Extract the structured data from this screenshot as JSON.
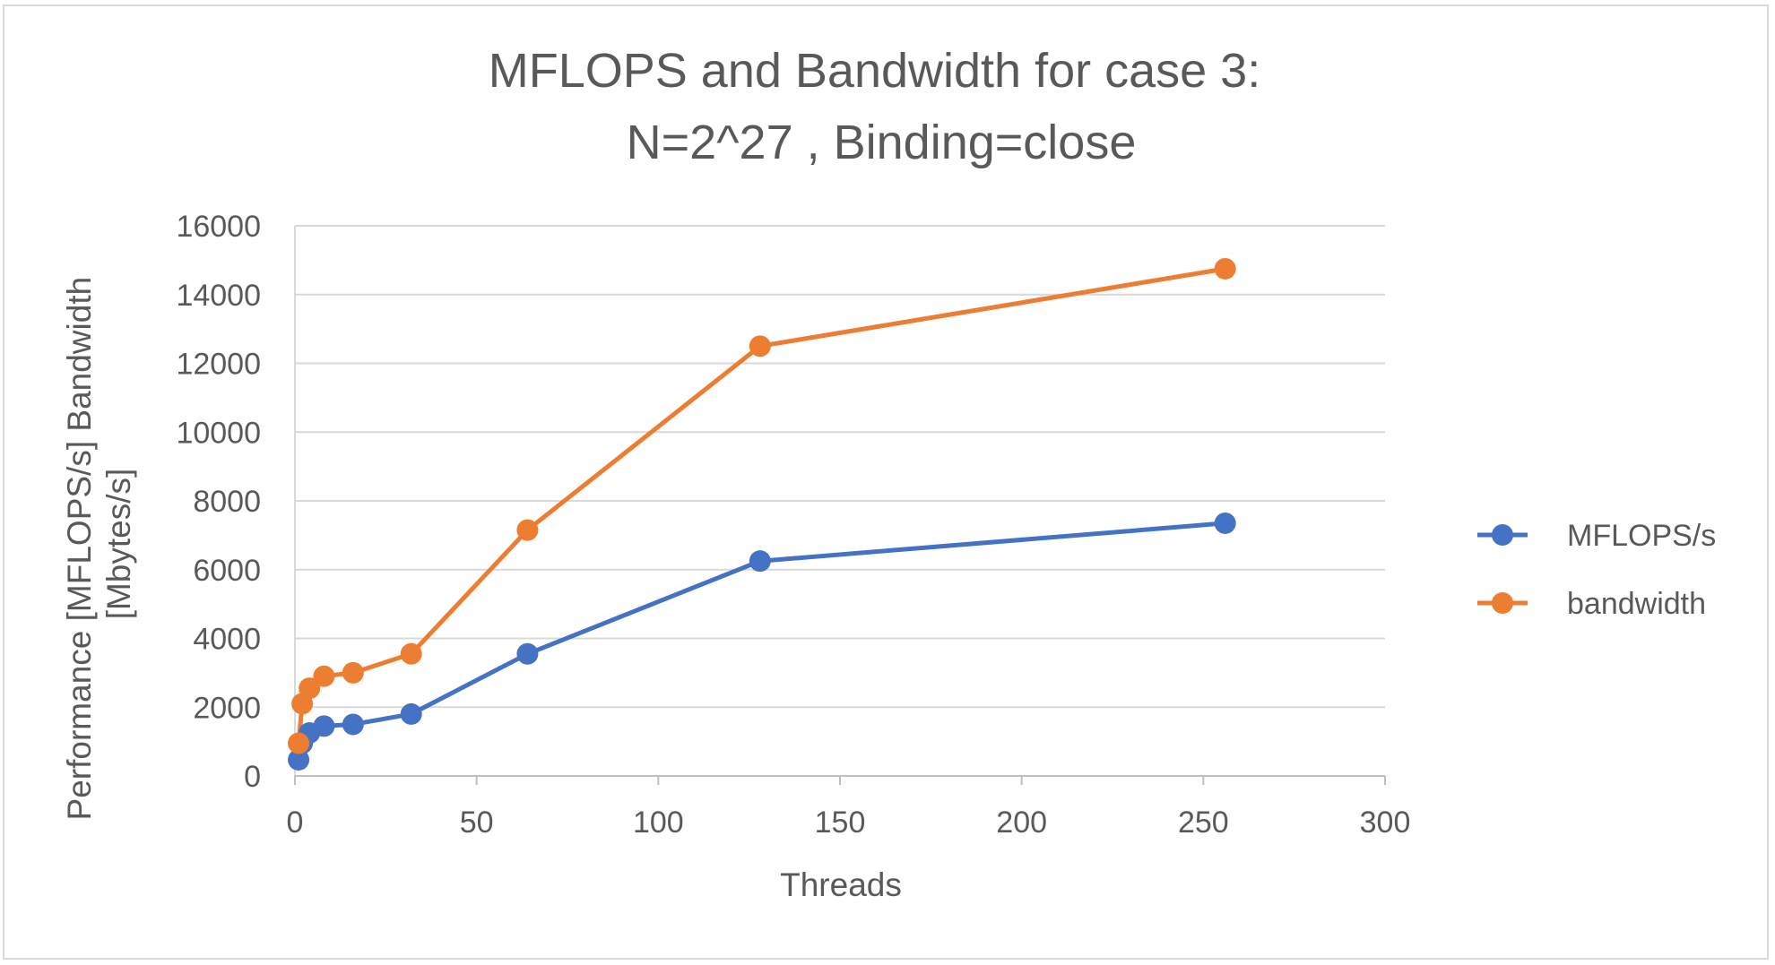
{
  "chart_data": {
    "type": "line",
    "title_lines": [
      "MFLOPS and Bandwidth for case 3:",
      "N=2^27 , Binding=close"
    ],
    "xlabel": "Threads",
    "ylabel_lines": [
      "Performance [MFLOPS/s] Bandwidth",
      "[Mbytes/s]"
    ],
    "xlim": [
      0,
      300
    ],
    "ylim": [
      0,
      16000
    ],
    "x_ticks": [
      0,
      50,
      100,
      150,
      200,
      250,
      300
    ],
    "y_ticks": [
      0,
      2000,
      4000,
      6000,
      8000,
      10000,
      12000,
      14000,
      16000
    ],
    "grid": "horizontal",
    "legend_position": "right",
    "x": [
      1,
      2,
      4,
      8,
      16,
      32,
      64,
      128,
      256
    ],
    "series": [
      {
        "name": "MFLOPS/s",
        "color": "#4472c4",
        "values": [
          470,
          950,
          1250,
          1450,
          1500,
          1800,
          3550,
          6250,
          7350
        ]
      },
      {
        "name": "bandwidth",
        "color": "#ed7d31",
        "values": [
          950,
          2100,
          2550,
          2900,
          3000,
          3550,
          7150,
          12500,
          14750
        ]
      }
    ]
  }
}
